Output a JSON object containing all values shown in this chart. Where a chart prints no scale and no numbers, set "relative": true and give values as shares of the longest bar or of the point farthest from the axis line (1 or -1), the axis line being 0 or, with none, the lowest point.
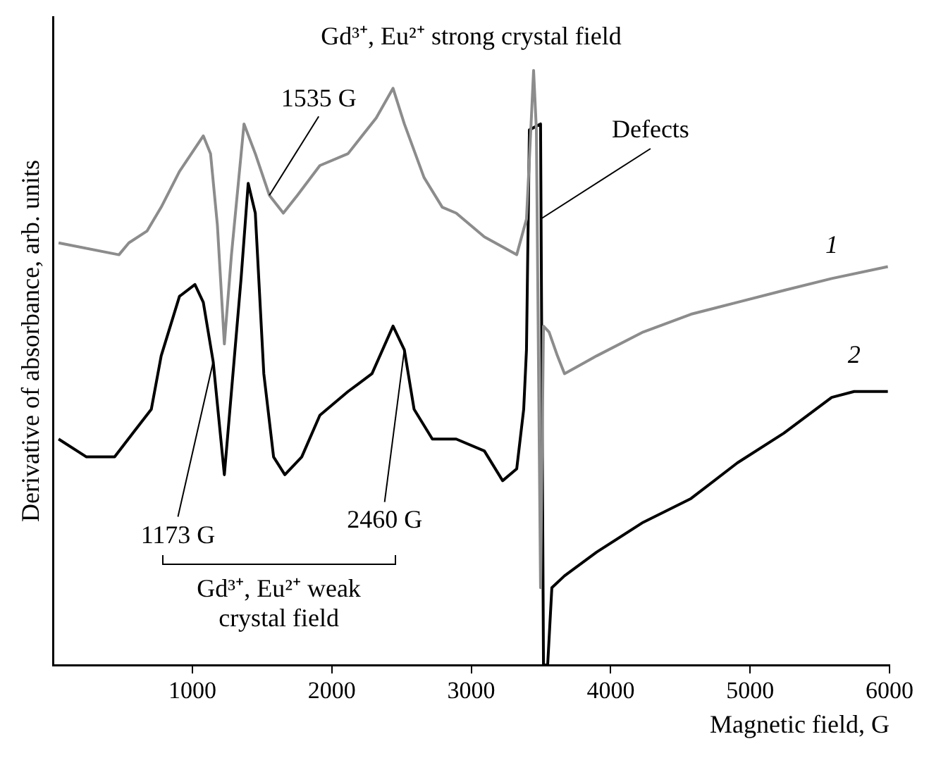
{
  "chart_data": {
    "type": "line",
    "relative": true,
    "xlabel": "Magnetic field, G",
    "ylabel": "Derivative of absorbance, arb. units",
    "xlim": [
      0,
      6000
    ],
    "xticks": [
      1000,
      2000,
      3000,
      4000,
      5000,
      6000
    ],
    "grid": false,
    "legend": false,
    "marker": "none",
    "line_style": "solid",
    "series": [
      {
        "name": "1",
        "color": "#8c8c8c",
        "x": [
          40,
          473,
          544,
          675,
          776,
          907,
          1078,
          1130,
          1179,
          1229,
          1280,
          1370,
          1451,
          1552,
          1652,
          1753,
          1914,
          2116,
          2318,
          2439,
          2520,
          2661,
          2792,
          2892,
          3094,
          3326,
          3396,
          3427,
          3447,
          3467,
          3497,
          3518,
          3558,
          3618,
          3669,
          3900,
          4233,
          4576,
          4909,
          5242,
          5585,
          5988
        ],
        "values": [
          0.71,
          0.69,
          0.71,
          0.73,
          0.77,
          0.83,
          0.89,
          0.86,
          0.74,
          0.54,
          0.69,
          0.91,
          0.86,
          0.79,
          0.76,
          0.79,
          0.84,
          0.86,
          0.92,
          0.97,
          0.91,
          0.82,
          0.77,
          0.76,
          0.72,
          0.69,
          0.75,
          0.9,
          1,
          0.9,
          0.13,
          0.57,
          0.56,
          0.52,
          0.49,
          0.52,
          0.56,
          0.59,
          0.61,
          0.63,
          0.65,
          0.67
        ]
      },
      {
        "name": "2",
        "color": "#000000",
        "x": [
          40,
          240,
          442,
          573,
          705,
          776,
          907,
          1018,
          1078,
          1149,
          1229,
          1349,
          1400,
          1451,
          1512,
          1582,
          1663,
          1784,
          1914,
          2116,
          2288,
          2439,
          2520,
          2590,
          2721,
          2862,
          2892,
          3094,
          3225,
          3326,
          3376,
          3396,
          3417,
          3497,
          3518,
          3548,
          3578,
          3669,
          3900,
          4233,
          4576,
          4909,
          5242,
          5585,
          5746,
          5988
        ],
        "values": [
          0.38,
          0.35,
          0.35,
          0.39,
          0.43,
          0.52,
          0.62,
          0.64,
          0.61,
          0.51,
          0.32,
          0.65,
          0.81,
          0.76,
          0.49,
          0.35,
          0.32,
          0.35,
          0.42,
          0.46,
          0.49,
          0.57,
          0.53,
          0.43,
          0.38,
          0.38,
          0.38,
          0.36,
          0.31,
          0.33,
          0.43,
          0.53,
          0.9,
          0.91,
          0,
          0,
          0.13,
          0.15,
          0.19,
          0.24,
          0.28,
          0.34,
          0.39,
          0.45,
          0.46,
          0.46
        ]
      }
    ],
    "annotations": [
      "Gd³⁺, Eu²⁺ strong crystal field",
      {
        "text": "1535 G",
        "x": 1552,
        "y": 0.79
      },
      {
        "text": "1173 G",
        "x": 1149,
        "y": 0.51
      },
      {
        "text": "2460 G",
        "x": 2520,
        "y": 0.53
      },
      {
        "text": "Defects",
        "x": 3497,
        "y": 0.75
      },
      "Gd³⁺, Eu²⁺ weak crystal field"
    ]
  }
}
